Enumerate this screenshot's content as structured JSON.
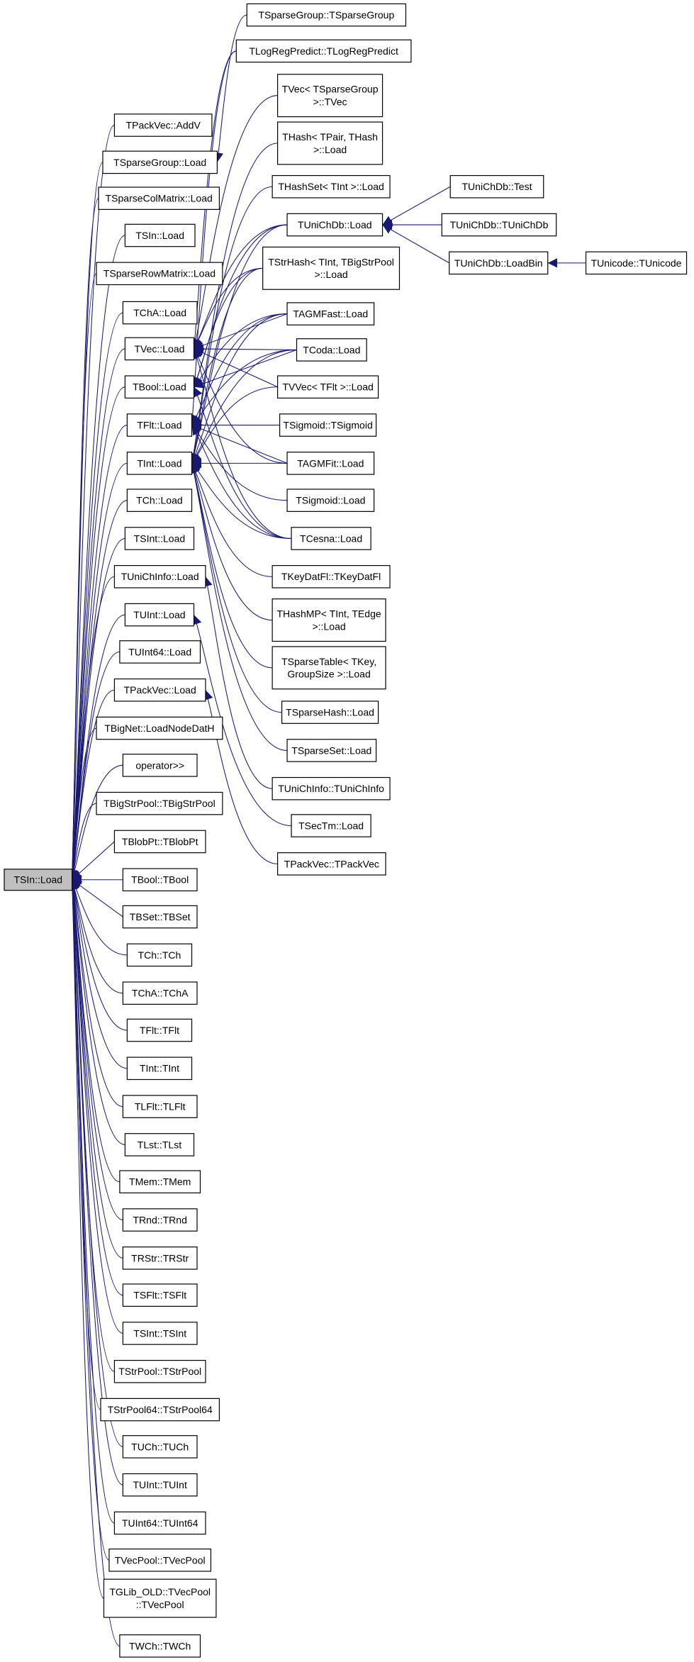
{
  "graph": {
    "edge_color": "#191970",
    "root_fill": "#bfbfbf",
    "nodes": [
      {
        "id": "root",
        "label": [
          "TSIn::Load"
        ]
      },
      {
        "id": "c2_0",
        "label": [
          "TPackVec::AddV"
        ]
      },
      {
        "id": "c2_1",
        "label": [
          "TSparseGroup::Load"
        ]
      },
      {
        "id": "c2_2",
        "label": [
          "TSparseColMatrix::Load"
        ]
      },
      {
        "id": "c2_3",
        "label": [
          "TSIn::Load"
        ]
      },
      {
        "id": "c2_4",
        "label": [
          "TSparseRowMatrix::Load"
        ]
      },
      {
        "id": "c2_5",
        "label": [
          "TChA::Load"
        ]
      },
      {
        "id": "c2_6",
        "label": [
          "TVec::Load"
        ]
      },
      {
        "id": "c2_7",
        "label": [
          "TBool::Load"
        ]
      },
      {
        "id": "c2_8",
        "label": [
          "TFlt::Load"
        ]
      },
      {
        "id": "c2_9",
        "label": [
          "TInt::Load"
        ]
      },
      {
        "id": "c2_10",
        "label": [
          "TCh::Load"
        ]
      },
      {
        "id": "c2_11",
        "label": [
          "TSInt::Load"
        ]
      },
      {
        "id": "c2_12",
        "label": [
          "TUniChInfo::Load"
        ]
      },
      {
        "id": "c2_13",
        "label": [
          "TUInt::Load"
        ]
      },
      {
        "id": "c2_14",
        "label": [
          "TUInt64::Load"
        ]
      },
      {
        "id": "c2_15",
        "label": [
          "TPackVec::Load"
        ]
      },
      {
        "id": "c2_16",
        "label": [
          "TBigNet::LoadNodeDatH"
        ]
      },
      {
        "id": "c2_17",
        "label": [
          "operator>>"
        ]
      },
      {
        "id": "c2_18",
        "label": [
          "TBigStrPool::TBigStrPool"
        ]
      },
      {
        "id": "c2_19",
        "label": [
          "TBlobPt::TBlobPt"
        ]
      },
      {
        "id": "c2_20",
        "label": [
          "TBool::TBool"
        ]
      },
      {
        "id": "c2_21",
        "label": [
          "TBSet::TBSet"
        ]
      },
      {
        "id": "c2_22",
        "label": [
          "TCh::TCh"
        ]
      },
      {
        "id": "c2_23",
        "label": [
          "TChA::TChA"
        ]
      },
      {
        "id": "c2_24",
        "label": [
          "TFlt::TFlt"
        ]
      },
      {
        "id": "c2_25",
        "label": [
          "TInt::TInt"
        ]
      },
      {
        "id": "c2_26",
        "label": [
          "TLFlt::TLFlt"
        ]
      },
      {
        "id": "c2_27",
        "label": [
          "TLst::TLst"
        ]
      },
      {
        "id": "c2_28",
        "label": [
          "TMem::TMem"
        ]
      },
      {
        "id": "c2_29",
        "label": [
          "TRnd::TRnd"
        ]
      },
      {
        "id": "c2_30",
        "label": [
          "TRStr::TRStr"
        ]
      },
      {
        "id": "c2_31",
        "label": [
          "TSFlt::TSFlt"
        ]
      },
      {
        "id": "c2_32",
        "label": [
          "TSInt::TSInt"
        ]
      },
      {
        "id": "c2_33",
        "label": [
          "TStrPool::TStrPool"
        ]
      },
      {
        "id": "c2_34",
        "label": [
          "TStrPool64::TStrPool64"
        ]
      },
      {
        "id": "c2_35",
        "label": [
          "TUCh::TUCh"
        ]
      },
      {
        "id": "c2_36",
        "label": [
          "TUInt::TUInt"
        ]
      },
      {
        "id": "c2_37",
        "label": [
          "TUInt64::TUInt64"
        ]
      },
      {
        "id": "c2_38",
        "label": [
          "TVecPool::TVecPool"
        ]
      },
      {
        "id": "c2_39",
        "label": [
          "TGLib_OLD::TVecPool",
          "::TVecPool"
        ]
      },
      {
        "id": "c2_40",
        "label": [
          "TWCh::TWCh"
        ]
      },
      {
        "id": "c3_0",
        "label": [
          "TSparseGroup::TSparseGroup"
        ]
      },
      {
        "id": "c3_1",
        "label": [
          "TLogRegPredict::TLogRegPredict"
        ]
      },
      {
        "id": "c3_2",
        "label": [
          "TVec< TSparseGroup",
          ">::TVec"
        ]
      },
      {
        "id": "c3_3",
        "label": [
          "THash< TPair, THash",
          ">::Load"
        ]
      },
      {
        "id": "c3_4",
        "label": [
          "THashSet< TInt >::Load"
        ]
      },
      {
        "id": "c3_5",
        "label": [
          "TUniChDb::Load"
        ]
      },
      {
        "id": "c3_6",
        "label": [
          "TStrHash< TInt, TBigStrPool",
          ">::Load"
        ]
      },
      {
        "id": "c3_7",
        "label": [
          "TAGMFast::Load"
        ]
      },
      {
        "id": "c3_8",
        "label": [
          "TCoda::Load"
        ]
      },
      {
        "id": "c3_9",
        "label": [
          "TVVec< TFlt >::Load"
        ]
      },
      {
        "id": "c3_10",
        "label": [
          "TSigmoid::TSigmoid"
        ]
      },
      {
        "id": "c3_11",
        "label": [
          "TAGMFit::Load"
        ]
      },
      {
        "id": "c3_12",
        "label": [
          "TSigmoid::Load"
        ]
      },
      {
        "id": "c3_13",
        "label": [
          "TCesna::Load"
        ]
      },
      {
        "id": "c3_14",
        "label": [
          "TKeyDatFl::TKeyDatFl"
        ]
      },
      {
        "id": "c3_15",
        "label": [
          "THashMP< TInt, TEdge",
          ">::Load"
        ]
      },
      {
        "id": "c3_16",
        "label": [
          "TSparseTable< TKey,",
          "GroupSize >::Load"
        ]
      },
      {
        "id": "c3_17",
        "label": [
          "TSparseHash::Load"
        ]
      },
      {
        "id": "c3_18",
        "label": [
          "TSparseSet::Load"
        ]
      },
      {
        "id": "c3_19",
        "label": [
          "TUniChInfo::TUniChInfo"
        ]
      },
      {
        "id": "c3_20",
        "label": [
          "TSecTm::Load"
        ]
      },
      {
        "id": "c3_21",
        "label": [
          "TPackVec::TPackVec"
        ]
      },
      {
        "id": "c4_0",
        "label": [
          "TUniChDb::Test"
        ]
      },
      {
        "id": "c4_1",
        "label": [
          "TUniChDb::TUniChDb"
        ]
      },
      {
        "id": "c4_2",
        "label": [
          "TUniChDb::LoadBin"
        ]
      },
      {
        "id": "c5_0",
        "label": [
          "TUnicode::TUnicode"
        ]
      }
    ],
    "edges": [
      [
        "c3_0",
        "c2_1"
      ],
      [
        "c3_1",
        "c2_6"
      ],
      [
        "c3_1",
        "c2_8"
      ],
      [
        "c3_2",
        "c2_6"
      ],
      [
        "c3_3",
        "c2_9"
      ],
      [
        "c3_4",
        "c2_9"
      ],
      [
        "c3_5",
        "c2_6"
      ],
      [
        "c3_5",
        "c2_7"
      ],
      [
        "c3_5",
        "c2_9"
      ],
      [
        "c3_6",
        "c2_6"
      ],
      [
        "c3_6",
        "c2_7"
      ],
      [
        "c3_6",
        "c2_9"
      ],
      [
        "c3_7",
        "c2_6"
      ],
      [
        "c3_7",
        "c2_7"
      ],
      [
        "c3_7",
        "c2_8"
      ],
      [
        "c3_7",
        "c2_9"
      ],
      [
        "c3_8",
        "c2_6"
      ],
      [
        "c3_8",
        "c2_7"
      ],
      [
        "c3_8",
        "c2_8"
      ],
      [
        "c3_8",
        "c2_9"
      ],
      [
        "c3_9",
        "c2_6"
      ],
      [
        "c3_9",
        "c2_9"
      ],
      [
        "c3_10",
        "c2_8"
      ],
      [
        "c3_11",
        "c2_6"
      ],
      [
        "c3_11",
        "c2_8"
      ],
      [
        "c3_11",
        "c2_9"
      ],
      [
        "c3_12",
        "c2_8"
      ],
      [
        "c3_13",
        "c2_6"
      ],
      [
        "c3_13",
        "c2_7"
      ],
      [
        "c3_13",
        "c2_8"
      ],
      [
        "c3_13",
        "c2_9"
      ],
      [
        "c3_14",
        "c2_9"
      ],
      [
        "c3_15",
        "c2_9"
      ],
      [
        "c3_16",
        "c2_9"
      ],
      [
        "c3_17",
        "c2_9"
      ],
      [
        "c3_18",
        "c2_9"
      ],
      [
        "c3_19",
        "c2_12"
      ],
      [
        "c3_20",
        "c2_13"
      ],
      [
        "c3_21",
        "c2_15"
      ],
      [
        "c4_0",
        "c3_5"
      ],
      [
        "c4_1",
        "c3_5"
      ],
      [
        "c4_2",
        "c3_5"
      ],
      [
        "c5_0",
        "c4_2"
      ]
    ]
  }
}
